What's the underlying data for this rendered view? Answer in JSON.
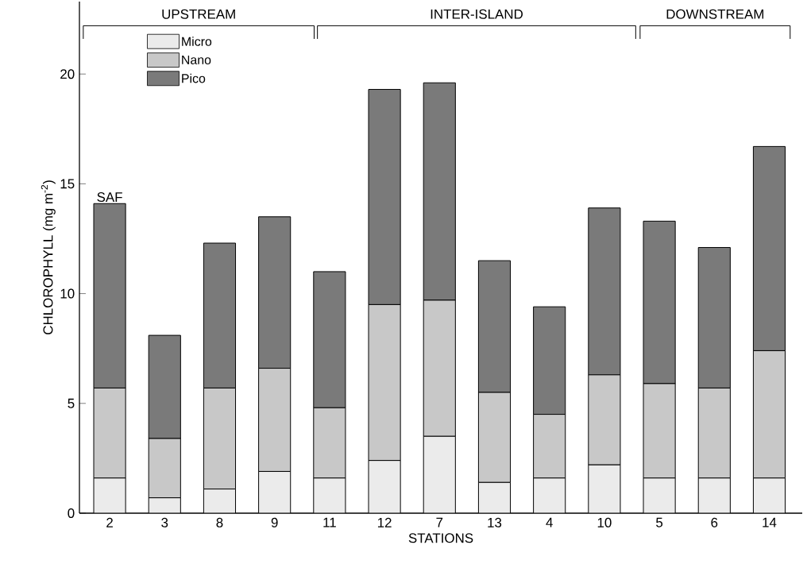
{
  "chart_data": {
    "type": "bar",
    "stacked": true,
    "xlabel": "STATIONS",
    "ylabel": "CHLOROPHYLL (mg m$^{-2}$)",
    "categories": [
      "2",
      "3",
      "8",
      "9",
      "11",
      "12",
      "7",
      "13",
      "4",
      "10",
      "5",
      "6",
      "14"
    ],
    "series": [
      {
        "name": "Micro",
        "color": "#ebebeb",
        "values": [
          1.6,
          0.7,
          1.1,
          1.9,
          1.6,
          2.4,
          3.5,
          1.4,
          1.6,
          2.2,
          1.6,
          1.6,
          1.6
        ]
      },
      {
        "name": "Nano",
        "color": "#c8c8c8",
        "values": [
          4.1,
          2.7,
          4.6,
          4.7,
          3.2,
          7.1,
          6.2,
          4.1,
          2.9,
          4.1,
          4.3,
          4.1,
          5.8
        ]
      },
      {
        "name": "Pico",
        "color": "#7a7a7a",
        "values": [
          8.4,
          4.7,
          6.6,
          6.9,
          6.2,
          9.8,
          9.9,
          6.0,
          4.9,
          7.6,
          7.4,
          6.4,
          9.3
        ]
      }
    ],
    "ylim": [
      0,
      23.3
    ],
    "yticks": [
      0,
      5,
      10,
      15,
      20
    ],
    "legend": "top left",
    "annotations": [
      "UPSTREAM",
      "INTER-ISLAND",
      "DOWNSTREAM",
      {
        "text": "SAF",
        "x": "2",
        "y": 14.1
      }
    ]
  }
}
